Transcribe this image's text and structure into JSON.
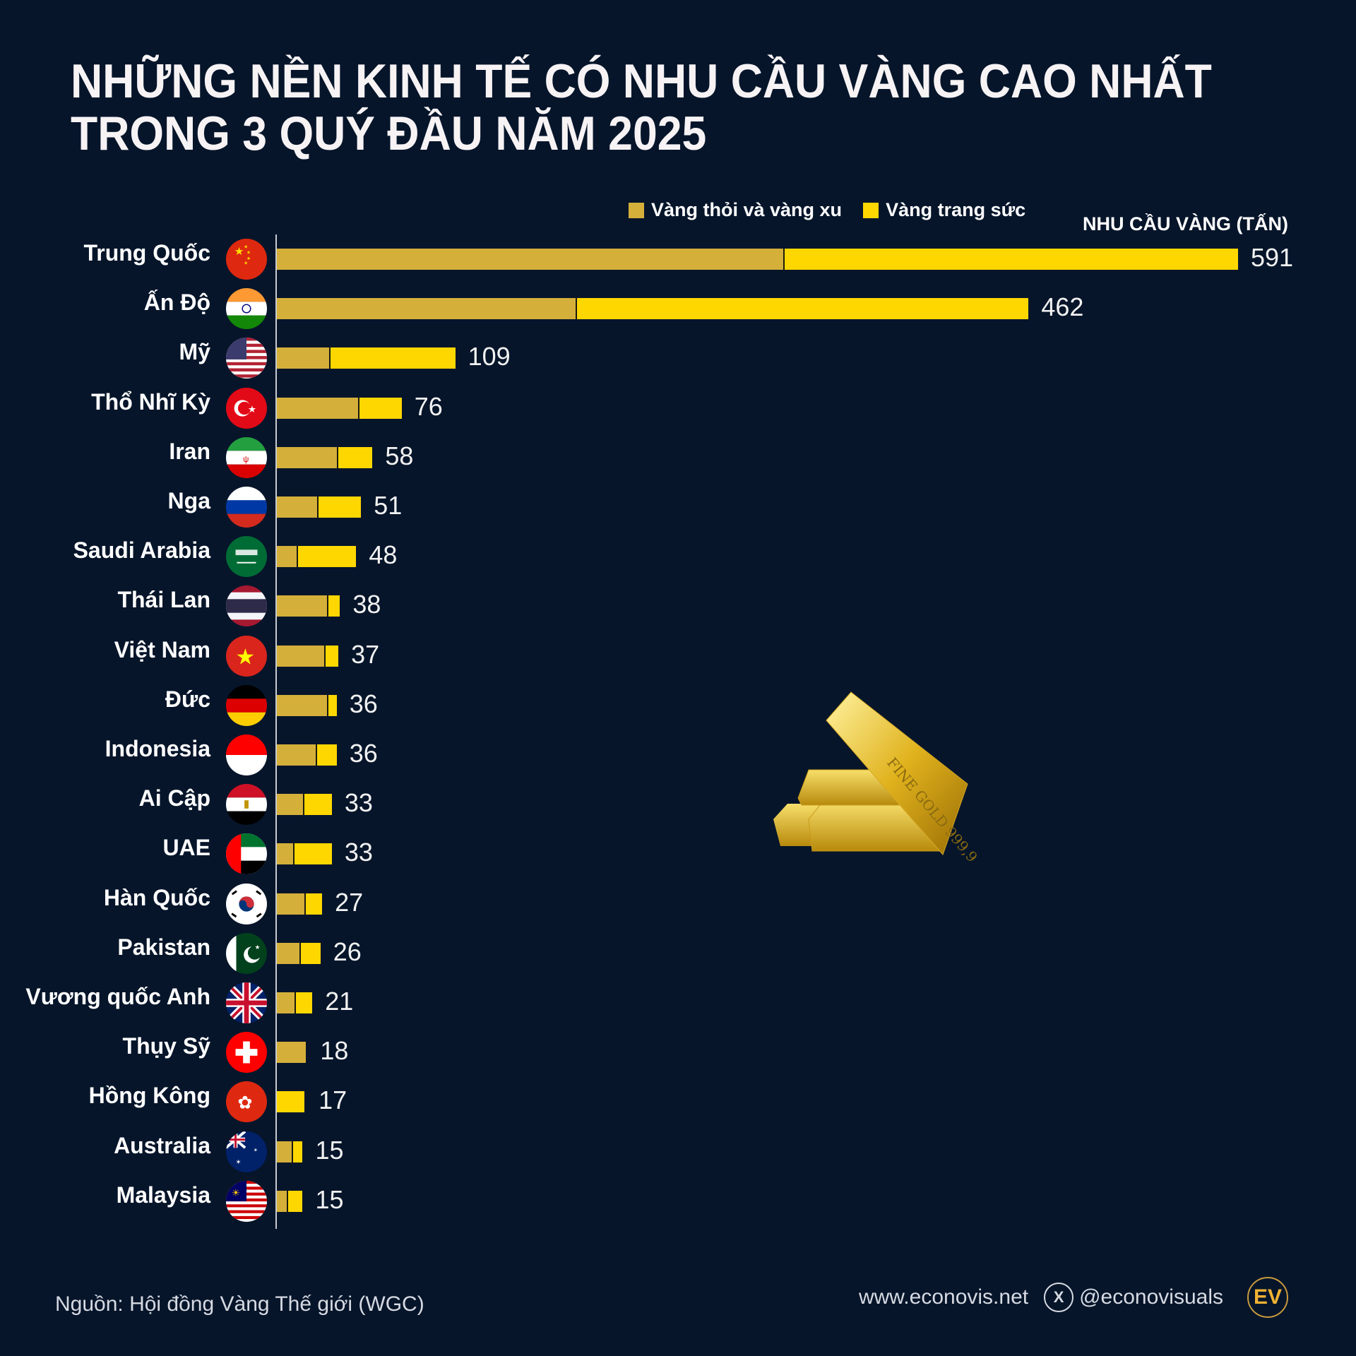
{
  "title": {
    "line1": "NHỮNG NỀN KINH TẾ CÓ NHU CẦU VÀNG CAO NHẤT",
    "line2": "TRONG 3 QUÝ ĐẦU NĂM 2025"
  },
  "legend": {
    "bars_label": "Vàng thỏi và vàng xu",
    "jewelry_label": "Vàng trang sức",
    "bars_color": "#d4af3a",
    "jewelry_color": "#ffd700"
  },
  "unit_label": "NHU CẦU VÀNG (TẤN)",
  "chart_data": {
    "type": "bar",
    "orientation": "horizontal",
    "stacked": true,
    "title": "NHỮNG NỀN KINH TẾ CÓ NHU CẦU VÀNG CAO NHẤT TRONG 3 QUÝ ĐẦU NĂM 2025",
    "xlabel": "NHU CẦU VÀNG (TẤN)",
    "ylabel": "",
    "legend_position": "top-right",
    "grid": false,
    "categories": [
      "Trung Quốc",
      "Ấn Độ",
      "Mỹ",
      "Thổ Nhĩ Kỳ",
      "Iran",
      "Nga",
      "Saudi Arabia",
      "Thái Lan",
      "Việt Nam",
      "Đức",
      "Indonesia",
      "Ai Cập",
      "UAE",
      "Hàn Quốc",
      "Pakistan",
      "Vương quốc Anh",
      "Thụy Sỹ",
      "Hồng Kông",
      "Australia",
      "Malaysia"
    ],
    "totals": [
      591,
      462,
      109,
      76,
      58,
      51,
      48,
      38,
      37,
      36,
      36,
      33,
      33,
      27,
      26,
      21,
      18,
      17,
      15,
      15
    ],
    "series": [
      {
        "name": "Vàng thỏi và vàng xu",
        "color": "#d4af3a",
        "values": [
          312,
          184,
          32,
          50,
          37,
          25,
          12,
          31,
          29,
          31,
          24,
          16,
          10,
          17,
          14,
          11,
          18,
          0,
          9,
          6
        ]
      },
      {
        "name": "Vàng trang sức",
        "color": "#ffd700",
        "values": [
          279,
          278,
          77,
          26,
          21,
          26,
          36,
          7,
          8,
          5,
          12,
          17,
          23,
          10,
          12,
          10,
          0,
          17,
          6,
          9
        ]
      }
    ],
    "xlim": [
      0,
      600
    ]
  },
  "rows": [
    {
      "country": "Trung Quốc",
      "flag": "china-flag",
      "total": "591"
    },
    {
      "country": "Ấn Độ",
      "flag": "india-flag",
      "total": "462"
    },
    {
      "country": "Mỹ",
      "flag": "usa-flag",
      "total": "109"
    },
    {
      "country": "Thổ Nhĩ Kỳ",
      "flag": "turkey-flag",
      "total": "76"
    },
    {
      "country": "Iran",
      "flag": "iran-flag",
      "total": "58"
    },
    {
      "country": "Nga",
      "flag": "russia-flag",
      "total": "51"
    },
    {
      "country": "Saudi Arabia",
      "flag": "saudi-flag",
      "total": "48"
    },
    {
      "country": "Thái Lan",
      "flag": "thailand-flag",
      "total": "38"
    },
    {
      "country": "Việt Nam",
      "flag": "vietnam-flag",
      "total": "37"
    },
    {
      "country": "Đức",
      "flag": "germany-flag",
      "total": "36"
    },
    {
      "country": "Indonesia",
      "flag": "indonesia-flag",
      "total": "36"
    },
    {
      "country": "Ai Cập",
      "flag": "egypt-flag",
      "total": "33"
    },
    {
      "country": "UAE",
      "flag": "uae-flag",
      "total": "33"
    },
    {
      "country": "Hàn Quốc",
      "flag": "korea-flag",
      "total": "27"
    },
    {
      "country": "Pakistan",
      "flag": "pakistan-flag",
      "total": "26"
    },
    {
      "country": "Vương quốc Anh",
      "flag": "uk-flag",
      "total": "21"
    },
    {
      "country": "Thụy Sỹ",
      "flag": "switzerland-flag",
      "total": "18"
    },
    {
      "country": "Hồng Kông",
      "flag": "hongkong-flag",
      "total": "17"
    },
    {
      "country": "Australia",
      "flag": "australia-flag",
      "total": "15"
    },
    {
      "country": "Malaysia",
      "flag": "malaysia-flag",
      "total": "15"
    }
  ],
  "image": {
    "label": "gold-bars-image",
    "text": "FINE GOLD 999,9"
  },
  "footer": {
    "source": "Nguồn: Hội đồng Vàng Thế giới (WGC)",
    "website": "www.econovis.net",
    "handle": "@econovisuals",
    "x_icon": "X",
    "logo": "EV"
  }
}
